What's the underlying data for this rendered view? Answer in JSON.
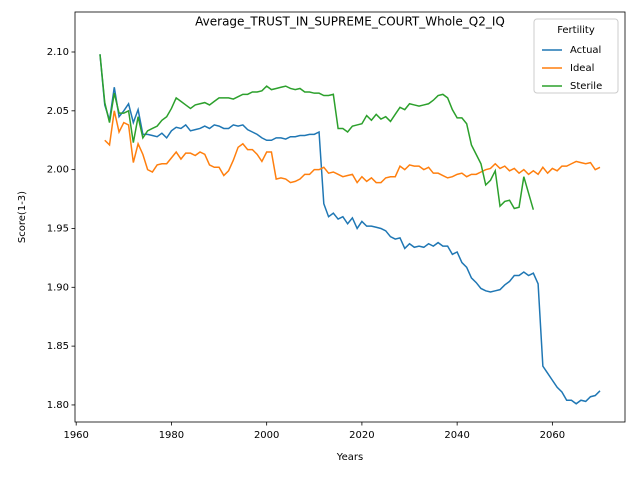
{
  "chart_data": {
    "type": "line",
    "title": "Average_TRUST_IN_SUPREME_COURT_Whole_Q2_IQ",
    "x_label": "Years",
    "y_label": "Score(1-3)",
    "legend_title": "Fertility",
    "legend": "upper right",
    "xlim": [
      1959.75,
      2075.25
    ],
    "ylim": [
      1.7855,
      2.134
    ],
    "xticks": [
      1960,
      1980,
      2000,
      2020,
      2040,
      2060
    ],
    "yticks": [
      {
        "value": 1.8,
        "label": "1.80"
      },
      1.85,
      {
        "value": 1.9,
        "label": "1.90"
      },
      1.95,
      {
        "value": 2.0,
        "label": "2.00"
      },
      2.05,
      {
        "value": 2.1,
        "label": "2.10"
      }
    ],
    "x": [
      1965,
      1966,
      1967,
      1968,
      1969,
      1970,
      1971,
      1972,
      1973,
      1974,
      1975,
      1976,
      1977,
      1978,
      1979,
      1980,
      1981,
      1982,
      1983,
      1984,
      1985,
      1986,
      1987,
      1988,
      1989,
      1990,
      1991,
      1992,
      1993,
      1994,
      1995,
      1996,
      1997,
      1998,
      1999,
      2000,
      2001,
      2002,
      2003,
      2004,
      2005,
      2006,
      2007,
      2008,
      2009,
      2010,
      2011,
      2012,
      2013,
      2014,
      2015,
      2016,
      2017,
      2018,
      2019,
      2020,
      2021,
      2022,
      2023,
      2024,
      2025,
      2026,
      2027,
      2028,
      2029,
      2030,
      2031,
      2032,
      2033,
      2034,
      2035,
      2036,
      2037,
      2038,
      2039,
      2040,
      2041,
      2042,
      2043,
      2044,
      2045,
      2046,
      2047,
      2048,
      2049,
      2050,
      2051,
      2052,
      2053,
      2054,
      2055,
      2056,
      2057,
      2058,
      2059,
      2060,
      2061,
      2062,
      2063,
      2064,
      2065,
      2066,
      2067,
      2068,
      2069,
      2070
    ],
    "series": [
      {
        "name": "Actual",
        "color": "#1f77b4",
        "values": [
          2.098,
          2.055,
          2.042,
          2.07,
          2.045,
          2.05,
          2.056,
          2.04,
          2.051,
          2.03,
          2.03,
          2.029,
          2.028,
          2.031,
          2.027,
          2.033,
          2.036,
          2.035,
          2.038,
          2.033,
          2.034,
          2.035,
          2.037,
          2.035,
          2.038,
          2.037,
          2.035,
          2.035,
          2.038,
          2.037,
          2.038,
          2.034,
          2.032,
          2.03,
          2.027,
          2.025,
          2.025,
          2.027,
          2.027,
          2.026,
          2.028,
          2.028,
          2.029,
          2.029,
          2.03,
          2.03,
          2.032,
          1.971,
          1.96,
          1.963,
          1.958,
          1.96,
          1.954,
          1.959,
          1.95,
          1.956,
          1.952,
          1.952,
          1.951,
          1.95,
          1.948,
          1.943,
          1.941,
          1.942,
          1.933,
          1.937,
          1.934,
          1.935,
          1.934,
          1.937,
          1.935,
          1.938,
          1.935,
          1.935,
          1.928,
          1.93,
          1.921,
          1.917,
          1.908,
          1.904,
          1.899,
          1.897,
          1.896,
          1.897,
          1.898,
          1.902,
          1.905,
          1.91,
          1.91,
          1.913,
          1.91,
          1.912,
          1.903,
          1.833,
          1.827,
          1.821,
          1.815,
          1.811,
          1.804,
          1.804,
          1.801,
          1.804,
          1.803,
          1.807,
          1.808,
          1.812
        ]
      },
      {
        "name": "Ideal",
        "color": "#ff7f0e",
        "values": [
          null,
          2.025,
          2.021,
          2.05,
          2.032,
          2.04,
          2.038,
          2.006,
          2.022,
          2.013,
          2.0,
          1.998,
          2.004,
          2.005,
          2.005,
          2.01,
          2.015,
          2.009,
          2.014,
          2.014,
          2.012,
          2.015,
          2.013,
          2.004,
          2.002,
          2.002,
          1.995,
          1.999,
          2.008,
          2.019,
          2.022,
          2.017,
          2.017,
          2.013,
          2.007,
          2.015,
          2.015,
          1.992,
          1.993,
          1.992,
          1.989,
          1.99,
          1.992,
          1.996,
          1.996,
          2.0,
          2.0,
          2.002,
          1.997,
          1.998,
          1.996,
          1.994,
          1.995,
          1.996,
          1.989,
          1.994,
          1.99,
          1.993,
          1.989,
          1.989,
          1.993,
          1.994,
          1.994,
          2.003,
          2.0,
          2.004,
          2.003,
          2.003,
          2.0,
          2.002,
          1.997,
          1.997,
          1.995,
          1.993,
          1.994,
          1.996,
          1.997,
          1.994,
          1.996,
          1.996,
          1.998,
          2.0,
          2.001,
          2.005,
          2.001,
          2.003,
          1.999,
          2.001,
          1.997,
          2.0,
          1.996,
          1.999,
          1.996,
          2.002,
          1.997,
          2.001,
          1.999,
          2.003,
          2.003,
          2.005,
          2.007,
          2.006,
          2.005,
          2.006,
          2.0,
          2.002
        ]
      },
      {
        "name": "Sterile",
        "color": "#2ca02c",
        "values": [
          2.098,
          2.057,
          2.04,
          2.065,
          2.048,
          2.048,
          2.05,
          2.023,
          2.045,
          2.027,
          2.033,
          2.035,
          2.037,
          2.042,
          2.045,
          2.052,
          2.061,
          2.058,
          2.055,
          2.052,
          2.055,
          2.056,
          2.057,
          2.055,
          2.058,
          2.061,
          2.061,
          2.061,
          2.06,
          2.062,
          2.064,
          2.064,
          2.066,
          2.066,
          2.067,
          2.071,
          2.068,
          2.069,
          2.07,
          2.071,
          2.069,
          2.068,
          2.069,
          2.066,
          2.066,
          2.065,
          2.065,
          2.063,
          2.063,
          2.064,
          2.035,
          2.035,
          2.032,
          2.037,
          2.038,
          2.039,
          2.046,
          2.042,
          2.047,
          2.043,
          2.045,
          2.041,
          2.047,
          2.053,
          2.051,
          2.056,
          2.055,
          2.054,
          2.055,
          2.056,
          2.059,
          2.063,
          2.064,
          2.061,
          2.051,
          2.044,
          2.044,
          2.039,
          2.021,
          2.013,
          2.005,
          1.987,
          1.991,
          1.999,
          1.969,
          1.973,
          1.974,
          1.967,
          1.968,
          1.994,
          1.98,
          1.966,
          null,
          null,
          null,
          null,
          null,
          null,
          null,
          null,
          null,
          null,
          null,
          null,
          null,
          null
        ]
      }
    ]
  }
}
